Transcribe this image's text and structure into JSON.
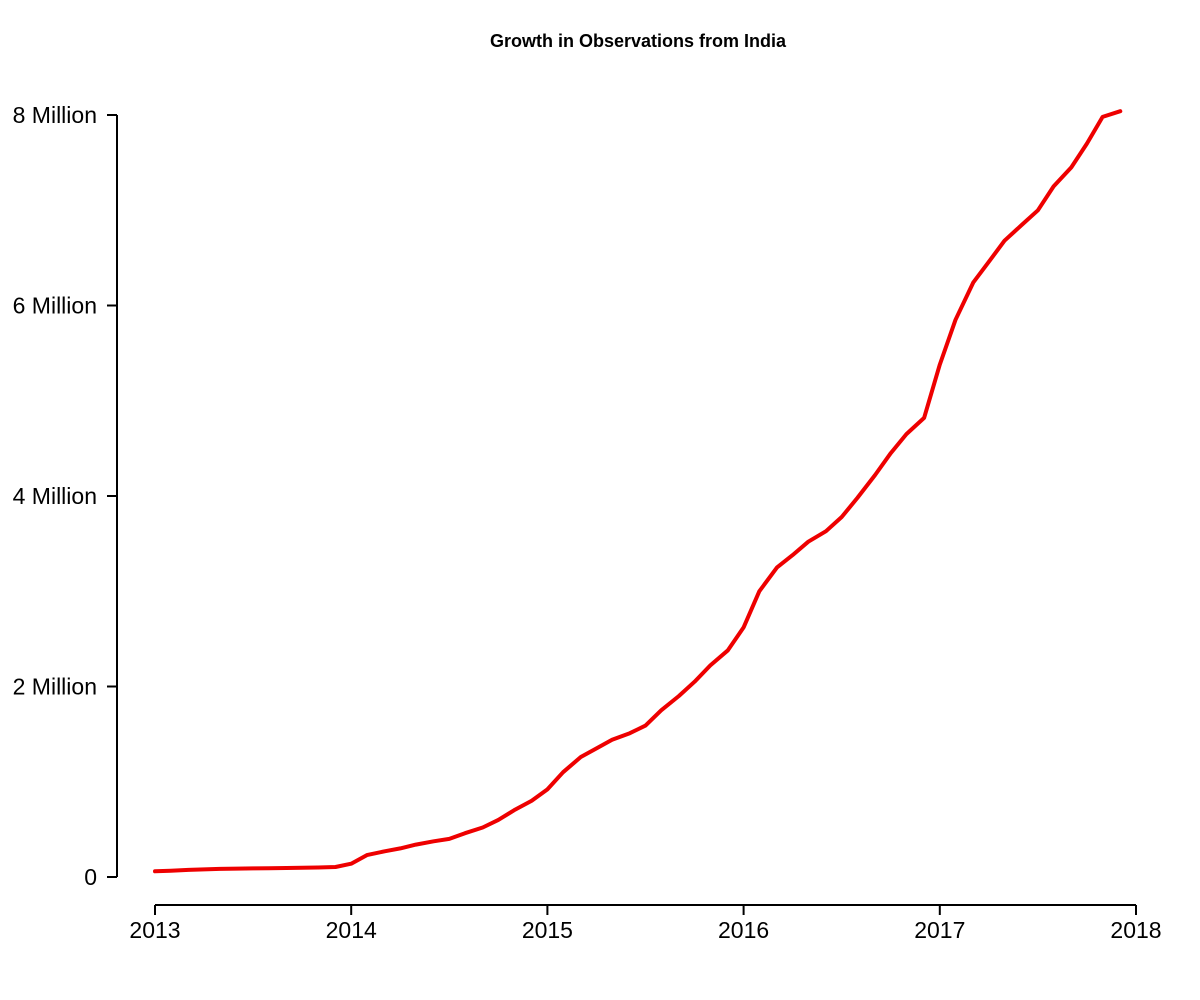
{
  "chart_data": {
    "type": "line",
    "title": "Growth in Observations from India",
    "xlabel": "",
    "ylabel": "",
    "xlim": [
      2013,
      2018
    ],
    "ylim": [
      0,
      8000000
    ],
    "grid": false,
    "legend": "none",
    "x_ticks": [
      2013,
      2014,
      2015,
      2016,
      2017,
      2018
    ],
    "x_tick_labels": [
      "2013",
      "2014",
      "2015",
      "2016",
      "2017",
      "2018"
    ],
    "y_ticks": [
      0,
      2000000,
      4000000,
      6000000,
      8000000
    ],
    "y_tick_labels": [
      "0",
      "2 Million",
      "4 Million",
      "6 Million",
      "8 Million"
    ],
    "series": [
      {
        "color": "#ee0000",
        "x": [
          2013.0,
          2013.08,
          2013.17,
          2013.25,
          2013.33,
          2013.42,
          2013.5,
          2013.58,
          2013.67,
          2013.75,
          2013.83,
          2013.92,
          2014.0,
          2014.08,
          2014.17,
          2014.25,
          2014.33,
          2014.42,
          2014.5,
          2014.58,
          2014.67,
          2014.75,
          2014.83,
          2014.92,
          2015.0,
          2015.08,
          2015.17,
          2015.25,
          2015.33,
          2015.42,
          2015.5,
          2015.58,
          2015.67,
          2015.75,
          2015.83,
          2015.92,
          2016.0,
          2016.08,
          2016.17,
          2016.25,
          2016.33,
          2016.42,
          2016.5,
          2016.58,
          2016.67,
          2016.75,
          2016.83,
          2016.92,
          2017.0,
          2017.08,
          2017.17,
          2017.25,
          2017.33,
          2017.42,
          2017.5,
          2017.58,
          2017.67,
          2017.75,
          2017.83,
          2017.92
        ],
        "y": [
          60000,
          65000,
          75000,
          80000,
          85000,
          88000,
          90000,
          92000,
          95000,
          98000,
          100000,
          105000,
          140000,
          230000,
          270000,
          300000,
          340000,
          375000,
          400000,
          460000,
          520000,
          600000,
          700000,
          800000,
          920000,
          1100000,
          1260000,
          1350000,
          1440000,
          1510000,
          1590000,
          1750000,
          1900000,
          2050000,
          2220000,
          2380000,
          2620000,
          3000000,
          3250000,
          3380000,
          3520000,
          3630000,
          3780000,
          3980000,
          4220000,
          4450000,
          4650000,
          4820000,
          5380000,
          5850000,
          6240000,
          6460000,
          6680000,
          6850000,
          7000000,
          7250000,
          7450000,
          7700000,
          7980000,
          8040000
        ]
      }
    ]
  }
}
